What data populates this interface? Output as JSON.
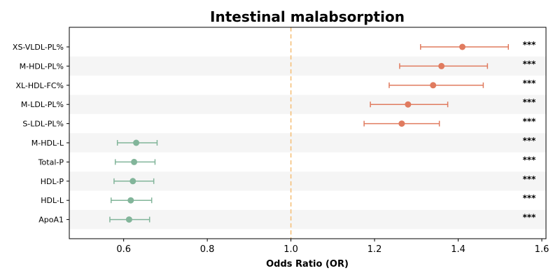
{
  "chart_data": {
    "type": "forest",
    "title": "Intestinal malabsorption",
    "xlabel": "Odds Ratio (OR)",
    "xlim": [
      0.47,
      1.61
    ],
    "xticks": [
      0.6,
      0.8,
      1.0,
      1.2,
      1.4,
      1.6
    ],
    "xtick_labels": [
      "0.6",
      "0.8",
      "1.0",
      "1.2",
      "1.4",
      "1.6"
    ],
    "reference_line": 1.0,
    "colors": {
      "risk": "#e07b5f",
      "protective": "#82b59a",
      "reference": "#f5c07a",
      "stripe": "#f5f5f5"
    },
    "items": [
      {
        "label": "XS-VLDL-PL%",
        "or": 1.41,
        "lower": 1.31,
        "upper": 1.52,
        "sig": "***"
      },
      {
        "label": "M-HDL-PL%",
        "or": 1.36,
        "lower": 1.26,
        "upper": 1.47,
        "sig": "***"
      },
      {
        "label": "XL-HDL-FC%",
        "or": 1.34,
        "lower": 1.235,
        "upper": 1.46,
        "sig": "***"
      },
      {
        "label": "M-LDL-PL%",
        "or": 1.28,
        "lower": 1.19,
        "upper": 1.375,
        "sig": "***"
      },
      {
        "label": "S-LDL-PL%",
        "or": 1.265,
        "lower": 1.175,
        "upper": 1.355,
        "sig": "***"
      },
      {
        "label": "M-HDL-L",
        "or": 0.63,
        "lower": 0.585,
        "upper": 0.68,
        "sig": "***"
      },
      {
        "label": "Total-P",
        "or": 0.625,
        "lower": 0.58,
        "upper": 0.675,
        "sig": "***"
      },
      {
        "label": "HDL-P",
        "or": 0.622,
        "lower": 0.577,
        "upper": 0.672,
        "sig": "***"
      },
      {
        "label": "HDL-L",
        "or": 0.617,
        "lower": 0.57,
        "upper": 0.667,
        "sig": "***"
      },
      {
        "label": "ApoA1",
        "or": 0.613,
        "lower": 0.567,
        "upper": 0.662,
        "sig": "***"
      }
    ]
  }
}
